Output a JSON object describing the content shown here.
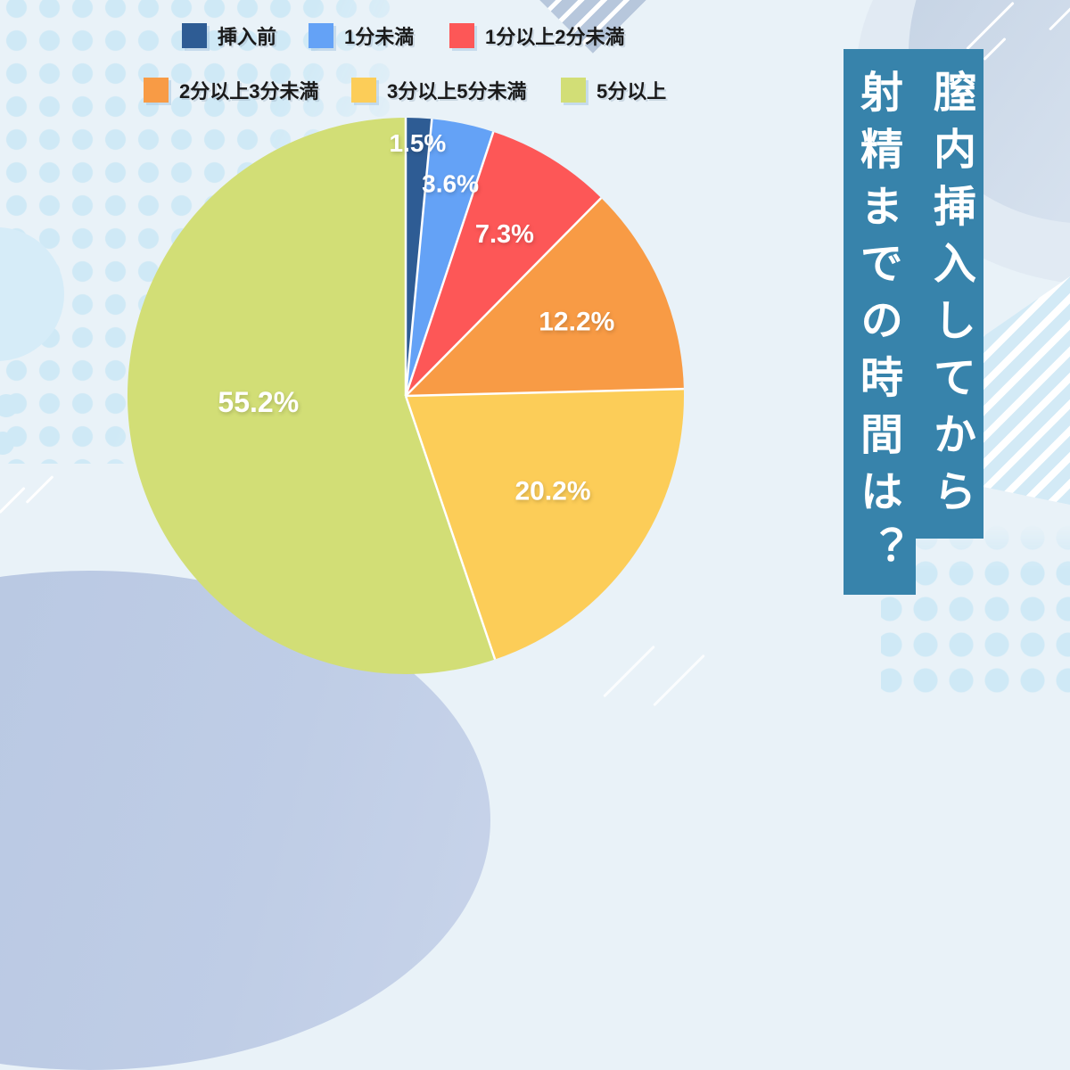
{
  "page": {
    "background": "#e9f2f8"
  },
  "title_panel": {
    "bg_color": "#3783ab",
    "text_color": "#ffffff",
    "full_title": "膣内挿入してから射精までの時間は？",
    "columns": [
      "膣内挿入してから",
      "射精までの時間は？"
    ]
  },
  "chart_data": {
    "type": "pie",
    "title": "膣内挿入してから射精までの時間は？",
    "unit": "%",
    "start_angle_deg": 0,
    "direction": "clockwise",
    "legend_position": "top-left",
    "slices": [
      {
        "label": "挿入前",
        "value": 1.5,
        "pct_label": "1.5%",
        "color": "#2e5c94"
      },
      {
        "label": "1分未満",
        "value": 3.6,
        "pct_label": "3.6%",
        "color": "#64a2f6"
      },
      {
        "label": "1分以上2分未満",
        "value": 7.3,
        "pct_label": "7.3%",
        "color": "#fd5757"
      },
      {
        "label": "2分以上3分未満",
        "value": 12.2,
        "pct_label": "12.2%",
        "color": "#f89b45"
      },
      {
        "label": "3分以上5分未満",
        "value": 20.2,
        "pct_label": "20.2%",
        "color": "#fccd58"
      },
      {
        "label": "5分以上",
        "value": 55.2,
        "pct_label": "55.2%",
        "color": "#d2de76"
      }
    ]
  },
  "decor": {
    "dot_color": "#cfe9f6",
    "stripe_blue": "#d3eaf6",
    "blob_slate": "#c3d1e3",
    "blob_bottom_left": "#bac9e3",
    "line_color": "#ffffff"
  }
}
